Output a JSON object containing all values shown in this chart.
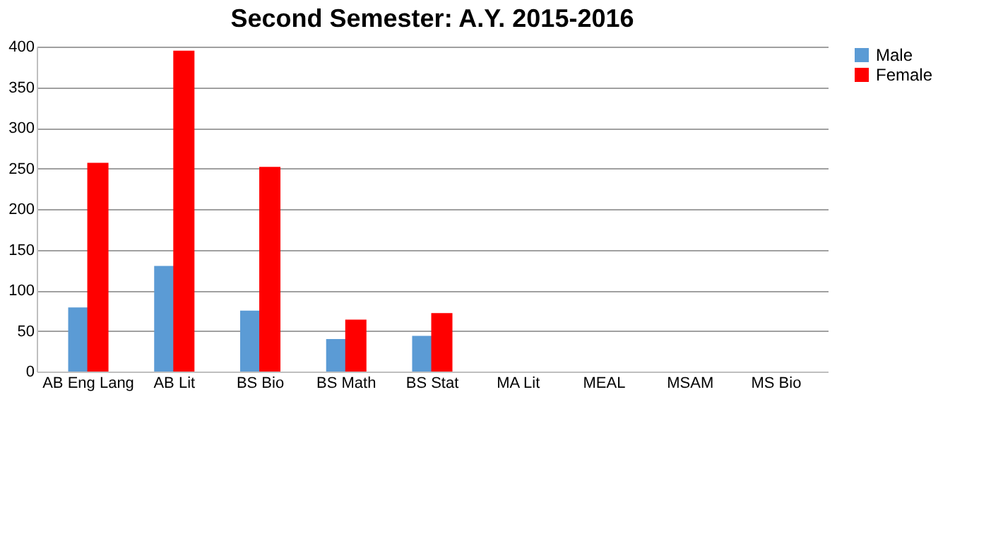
{
  "chart_data": {
    "type": "bar",
    "title": "Second Semester: A.Y. 2015-2016",
    "categories": [
      "AB Eng Lang",
      "AB Lit",
      "BS Bio",
      "BS Math",
      "BS Stat",
      "MA Lit",
      "MEAL",
      "MSAM",
      "MS Bio"
    ],
    "series": [
      {
        "name": "Male",
        "color": "#5b9bd5",
        "values": [
          79,
          130,
          75,
          40,
          44,
          0,
          0,
          0,
          0
        ]
      },
      {
        "name": "Female",
        "color": "#ff0000",
        "values": [
          257,
          395,
          252,
          64,
          72,
          0,
          0,
          0,
          0
        ]
      }
    ],
    "ylim": [
      0,
      400
    ],
    "yticks": [
      0,
      50,
      100,
      150,
      200,
      250,
      300,
      350,
      400
    ],
    "grid": "y",
    "legend": "right"
  }
}
